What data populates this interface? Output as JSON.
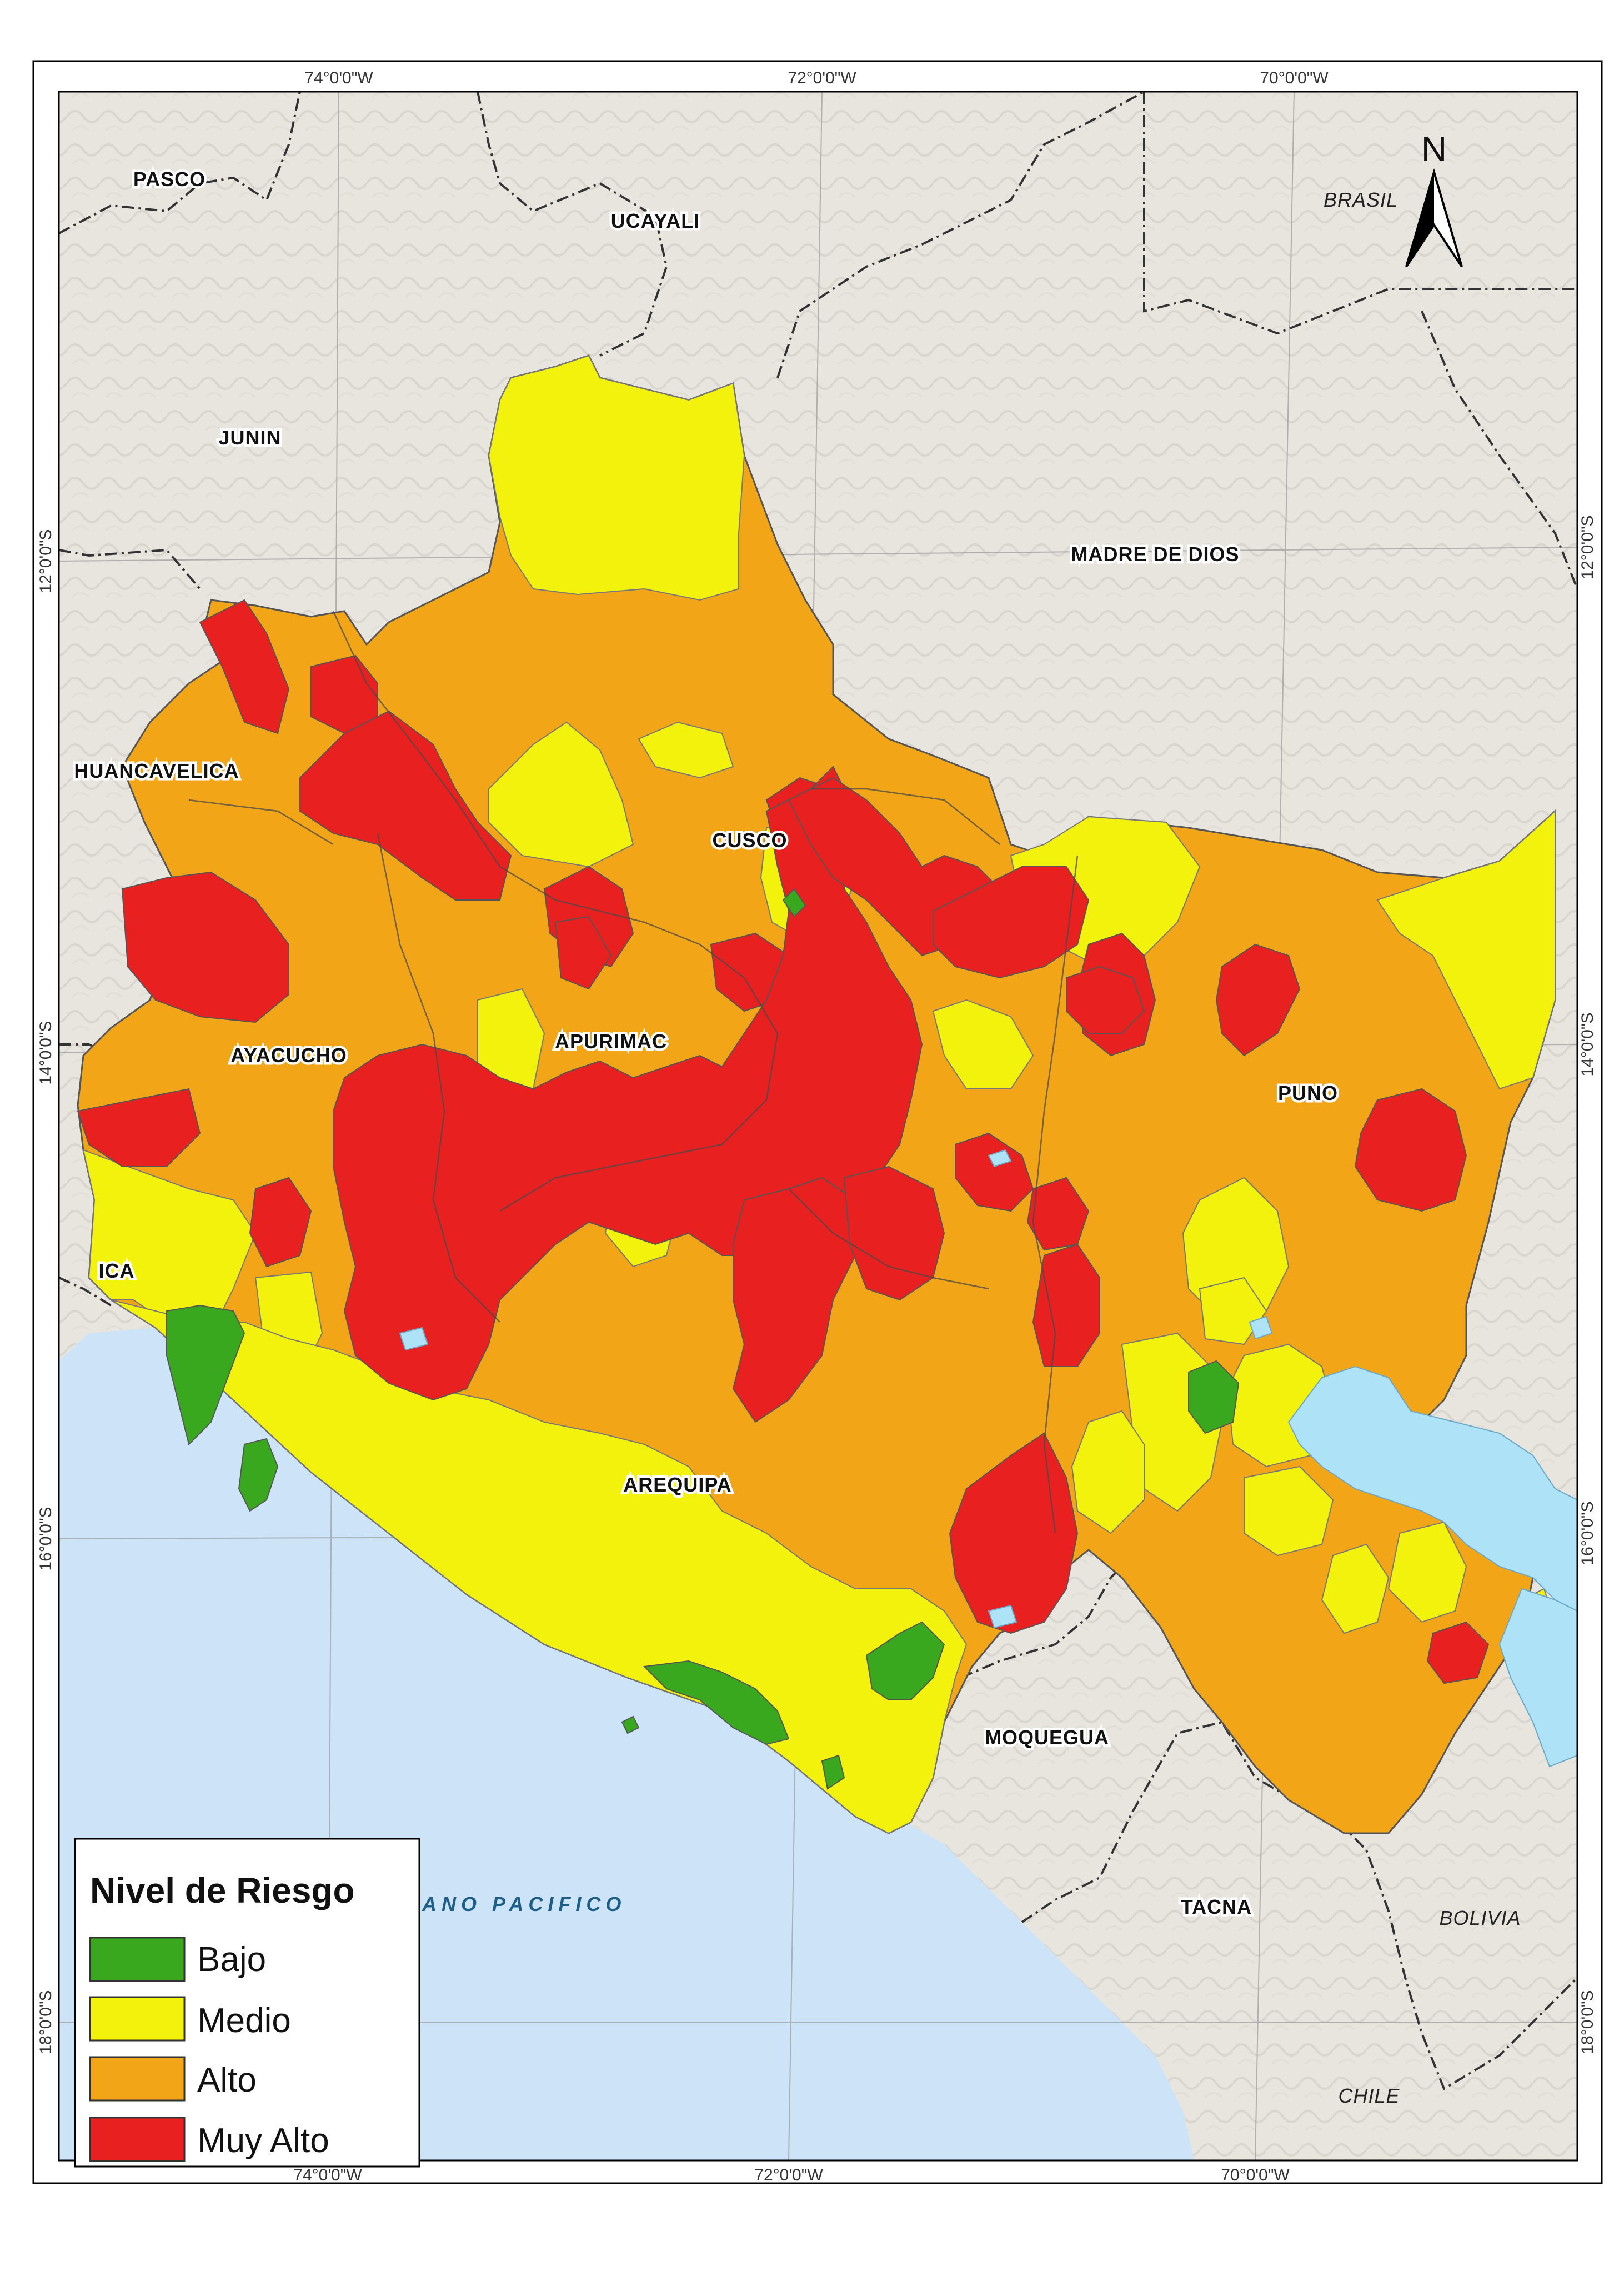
{
  "coordinates": {
    "top_lon": [
      "74°0'0\"W",
      "72°0'0\"W",
      "70°0'0\"W"
    ],
    "bottom_lon": [
      "74°0'0\"W",
      "72°0'0\"W",
      "70°0'0\"W"
    ],
    "left_lat": [
      "12°0'0\"S",
      "14°0'0\"S",
      "16°0'0\"S",
      "18°0'0\"S"
    ],
    "right_lat": [
      "12°0'0\"S",
      "14°0'0\"S",
      "16°0'0\"S",
      "18°0'0\"S"
    ]
  },
  "regions": {
    "pasco": "PASCO",
    "ucayali": "UCAYALI",
    "junin": "JUNIN",
    "madre_de_dios": "MADRE DE DIOS",
    "huancavelica": "HUANCAVELICA",
    "cusco": "CUSCO",
    "ayacucho": "AYACUCHO",
    "apurimac": "APURIMAC",
    "puno": "PUNO",
    "ica": "ICA",
    "arequipa": "AREQUIPA",
    "moquegua": "MOQUEGUA",
    "tacna": "TACNA"
  },
  "countries": {
    "brasil": "BRASIL",
    "bolivia": "BOLIVIA",
    "chile": "CHILE"
  },
  "ocean": "ANO PACIFICO",
  "north_arrow": "N",
  "legend": {
    "title": "Nivel de Riesgo",
    "items": [
      {
        "label": "Bajo",
        "color": "#3aa81e"
      },
      {
        "label": "Medio",
        "color": "#f2f20c"
      },
      {
        "label": "Alto",
        "color": "#f2a516"
      },
      {
        "label": "Muy Alto",
        "color": "#e82020"
      }
    ]
  },
  "colors": {
    "land": "#e8e4de",
    "ocean": "#cde3f7",
    "lake": "#aee3f7",
    "border": "#333333"
  }
}
